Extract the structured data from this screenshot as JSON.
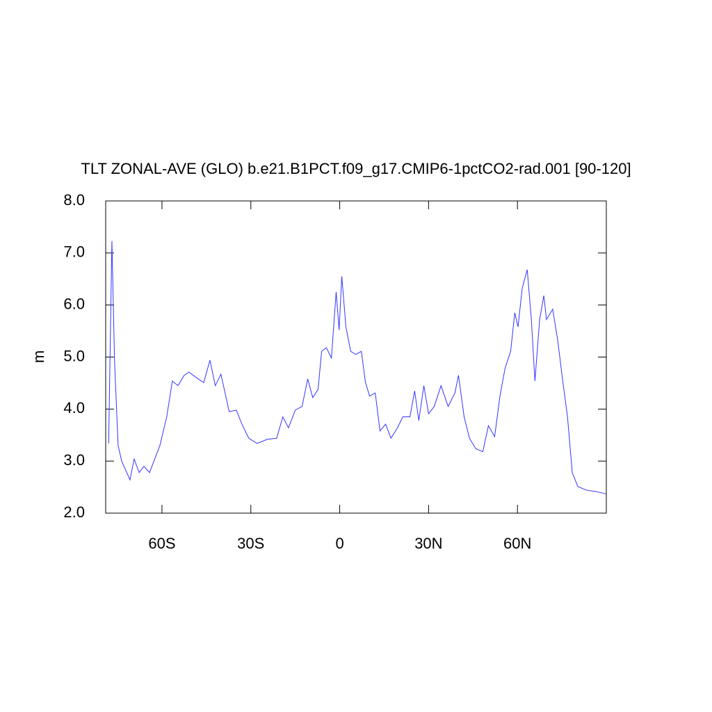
{
  "chart_data": {
    "type": "line",
    "title": "TLT ZONAL-AVE (GLO) b.e21.B1PCT.f09_g17.CMIP6-1pctCO2-rad.001 [90-120]",
    "ylabel": "m",
    "x": [
      -78.0,
      -76.9,
      -76.0,
      -74.8,
      -73.6,
      -70.8,
      -69.4,
      -67.7,
      -66.1,
      -64.2,
      -60.7,
      -58.4,
      -56.5,
      -54.6,
      -52.5,
      -50.9,
      -47.8,
      -45.9,
      -43.8,
      -42.0,
      -40.1,
      -37.3,
      -34.9,
      -33.0,
      -30.7,
      -27.9,
      -24.4,
      -21.3,
      -19.2,
      -17.3,
      -15.0,
      -12.7,
      -10.8,
      -9.1,
      -7.3,
      -6.1,
      -4.5,
      -2.8,
      -1.2,
      -0.2,
      0.7,
      2.1,
      3.7,
      5.4,
      7.3,
      8.7,
      10.1,
      12.0,
      13.6,
      15.5,
      17.3,
      19.5,
      21.3,
      23.7,
      25.3,
      26.7,
      28.4,
      30.0,
      31.9,
      34.2,
      36.6,
      38.9,
      40.1,
      42.0,
      43.8,
      45.9,
      48.3,
      50.2,
      52.3,
      54.1,
      55.8,
      57.7,
      59.1,
      60.2,
      61.6,
      63.3,
      64.7,
      65.9,
      67.5,
      68.9,
      69.8,
      71.9,
      73.6,
      75.2,
      76.9,
      78.5,
      80.4,
      83.4,
      87.0,
      89.8
    ],
    "series": [
      {
        "name": "TLT",
        "color": "#3333ff",
        "values": [
          3.34,
          7.23,
          4.9,
          3.3,
          3.0,
          2.64,
          3.04,
          2.78,
          2.9,
          2.78,
          3.3,
          3.85,
          4.54,
          4.45,
          4.65,
          4.71,
          4.58,
          4.51,
          4.94,
          4.45,
          4.67,
          3.95,
          3.98,
          3.71,
          3.44,
          3.34,
          3.42,
          3.44,
          3.85,
          3.64,
          3.98,
          4.05,
          4.58,
          4.22,
          4.38,
          5.11,
          5.18,
          4.98,
          6.25,
          5.52,
          6.55,
          5.58,
          5.11,
          5.05,
          5.11,
          4.51,
          4.25,
          4.31,
          3.58,
          3.71,
          3.44,
          3.64,
          3.85,
          3.85,
          4.35,
          3.78,
          4.45,
          3.91,
          4.05,
          4.45,
          4.05,
          4.31,
          4.65,
          3.85,
          3.44,
          3.24,
          3.18,
          3.68,
          3.47,
          4.25,
          4.78,
          5.11,
          5.85,
          5.58,
          6.32,
          6.68,
          5.72,
          4.54,
          5.72,
          6.18,
          5.72,
          5.92,
          5.32,
          4.58,
          3.85,
          2.78,
          2.51,
          2.44,
          2.41,
          2.37
        ]
      }
    ],
    "xlim": [
      -79,
      90
    ],
    "ylim": [
      2,
      8
    ],
    "xticks": [
      {
        "value": -60,
        "label": "60S"
      },
      {
        "value": -30,
        "label": "30S"
      },
      0,
      {
        "value": 30,
        "label": "30N"
      },
      {
        "value": 60,
        "label": "60N"
      }
    ],
    "yticks": [
      {
        "value": 2,
        "label": "2.0"
      },
      {
        "value": 3,
        "label": "3.0"
      },
      {
        "value": 4,
        "label": "4.0"
      },
      {
        "value": 5,
        "label": "5.0"
      },
      {
        "value": 6,
        "label": "6.0"
      },
      {
        "value": 7,
        "label": "7.0"
      },
      {
        "value": 8,
        "label": "8.0"
      }
    ]
  }
}
